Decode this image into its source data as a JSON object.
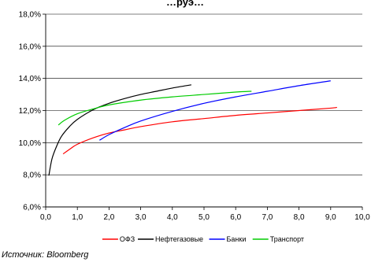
{
  "title_fragment": "…руэ…",
  "source": "Источник: Bloomberg",
  "chart_data": {
    "type": "line",
    "x_ticks": [
      "0,0",
      "1,0",
      "2,0",
      "3,0",
      "4,0",
      "5,0",
      "6,0",
      "7,0",
      "8,0",
      "9,0",
      "10,0"
    ],
    "y_ticks": [
      "6,0%",
      "8,0%",
      "10,0%",
      "12,0%",
      "14,0%",
      "16,0%",
      "18,0%"
    ],
    "xlim": [
      0,
      10
    ],
    "ylim": [
      6,
      18
    ],
    "grid": "horizontal",
    "legend_position": "bottom",
    "series": [
      {
        "name": "ОФЗ",
        "color": "#ff0000",
        "points": [
          [
            0.55,
            9.3
          ],
          [
            0.8,
            9.65
          ],
          [
            1.0,
            9.9
          ],
          [
            1.5,
            10.3
          ],
          [
            2.0,
            10.6
          ],
          [
            2.5,
            10.8
          ],
          [
            3.0,
            11.0
          ],
          [
            4.0,
            11.3
          ],
          [
            5.0,
            11.5
          ],
          [
            6.0,
            11.7
          ],
          [
            7.0,
            11.85
          ],
          [
            8.0,
            12.0
          ],
          [
            9.0,
            12.15
          ],
          [
            9.2,
            12.2
          ]
        ]
      },
      {
        "name": "Нефтегазовые",
        "color": "#000000",
        "points": [
          [
            0.1,
            7.95
          ],
          [
            0.2,
            9.0
          ],
          [
            0.35,
            9.8
          ],
          [
            0.5,
            10.4
          ],
          [
            0.75,
            11.0
          ],
          [
            1.0,
            11.45
          ],
          [
            1.5,
            12.05
          ],
          [
            2.0,
            12.45
          ],
          [
            2.5,
            12.75
          ],
          [
            3.0,
            13.0
          ],
          [
            3.5,
            13.2
          ],
          [
            4.0,
            13.4
          ],
          [
            4.6,
            13.6
          ]
        ]
      },
      {
        "name": "Банки",
        "color": "#0000ff",
        "points": [
          [
            1.7,
            10.15
          ],
          [
            2.0,
            10.5
          ],
          [
            2.5,
            10.95
          ],
          [
            3.0,
            11.35
          ],
          [
            4.0,
            11.95
          ],
          [
            5.0,
            12.45
          ],
          [
            6.0,
            12.85
          ],
          [
            7.0,
            13.2
          ],
          [
            8.0,
            13.55
          ],
          [
            9.0,
            13.85
          ]
        ]
      },
      {
        "name": "Транспорт",
        "color": "#00cc00",
        "points": [
          [
            0.4,
            11.1
          ],
          [
            0.6,
            11.4
          ],
          [
            1.0,
            11.8
          ],
          [
            1.5,
            12.1
          ],
          [
            2.0,
            12.35
          ],
          [
            3.0,
            12.65
          ],
          [
            4.0,
            12.85
          ],
          [
            5.0,
            13.0
          ],
          [
            6.0,
            13.15
          ],
          [
            6.5,
            13.2
          ]
        ]
      }
    ]
  }
}
